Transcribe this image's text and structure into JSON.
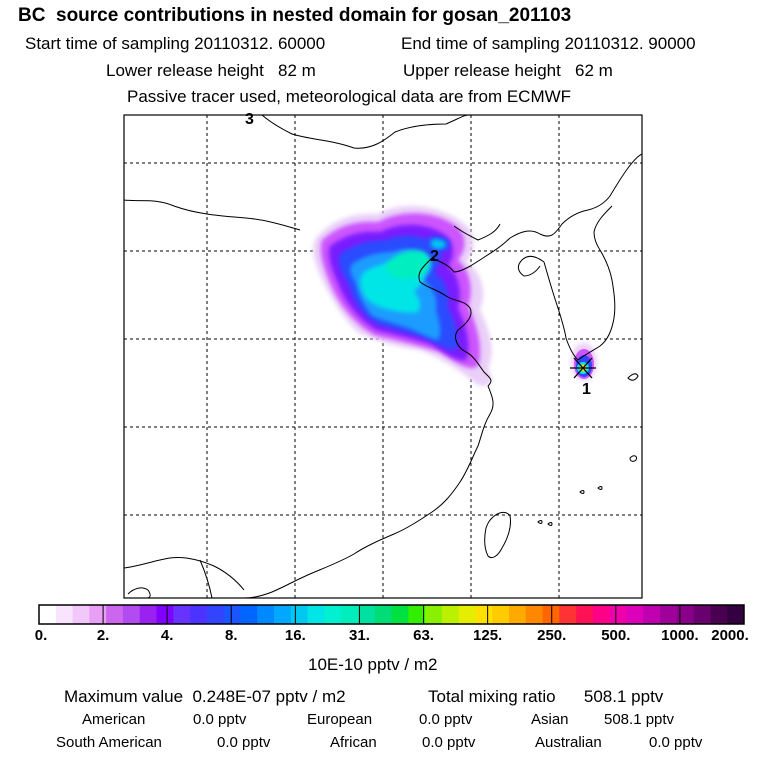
{
  "header": {
    "title": "BC  source contributions in nested domain for gosan_201103",
    "start_time": "Start time of sampling 20110312. 60000",
    "end_time": "End time of sampling 20110312. 90000",
    "lower_height": "Lower release height   82 m",
    "upper_height": "Upper release height   62 m",
    "tracer_note": "Passive tracer used, meteorological data are from ECMWF"
  },
  "map": {
    "labels": {
      "release_1": "1",
      "release_2": "2",
      "release_3": "3"
    }
  },
  "colorbar": {
    "unit": "10E-10 pptv / m2",
    "ticks": [
      "0.",
      "2.",
      "4.",
      "8.",
      "16.",
      "31.",
      "63.",
      "125.",
      "250.",
      "500.",
      "1000.",
      "2000."
    ],
    "colors": [
      "#ffffff",
      "#f8e4fc",
      "#f2c8fa",
      "#e8a0f6",
      "#cc66ee",
      "#b34cf0",
      "#9922f0",
      "#8000ff",
      "#6633ff",
      "#4d33ff",
      "#3344ff",
      "#1a55ff",
      "#0066ff",
      "#0088ff",
      "#00a8ff",
      "#00c8f0",
      "#00e6e6",
      "#00f0d0",
      "#00eebb",
      "#00e0a0",
      "#00dd77",
      "#00e040",
      "#33ee00",
      "#88f000",
      "#bbf000",
      "#e6ee00",
      "#ffe000",
      "#ffcc00",
      "#ffaa00",
      "#ff8800",
      "#ff6600",
      "#ff3333",
      "#ff1155",
      "#ff0088",
      "#ee00aa",
      "#dd00bb",
      "#c000b0",
      "#a0009a",
      "#880088",
      "#6a0070",
      "#4a0050",
      "#330040"
    ]
  },
  "footer": {
    "maximum_value": "Maximum value  0.248E-07 pptv / m2",
    "total_mixing": "Total mixing ratio      508.1 pptv",
    "american_label": "American",
    "american_value": "0.0 pptv",
    "european_label": "European",
    "european_value": "0.0 pptv",
    "asian_label": "Asian",
    "asian_value": "508.1 pptv",
    "south_american_label": "South American",
    "south_american_value": "0.0 pptv",
    "african_label": "African",
    "african_value": "0.0 pptv",
    "australian_label": "Australian",
    "australian_value": "0.0 pptv"
  }
}
